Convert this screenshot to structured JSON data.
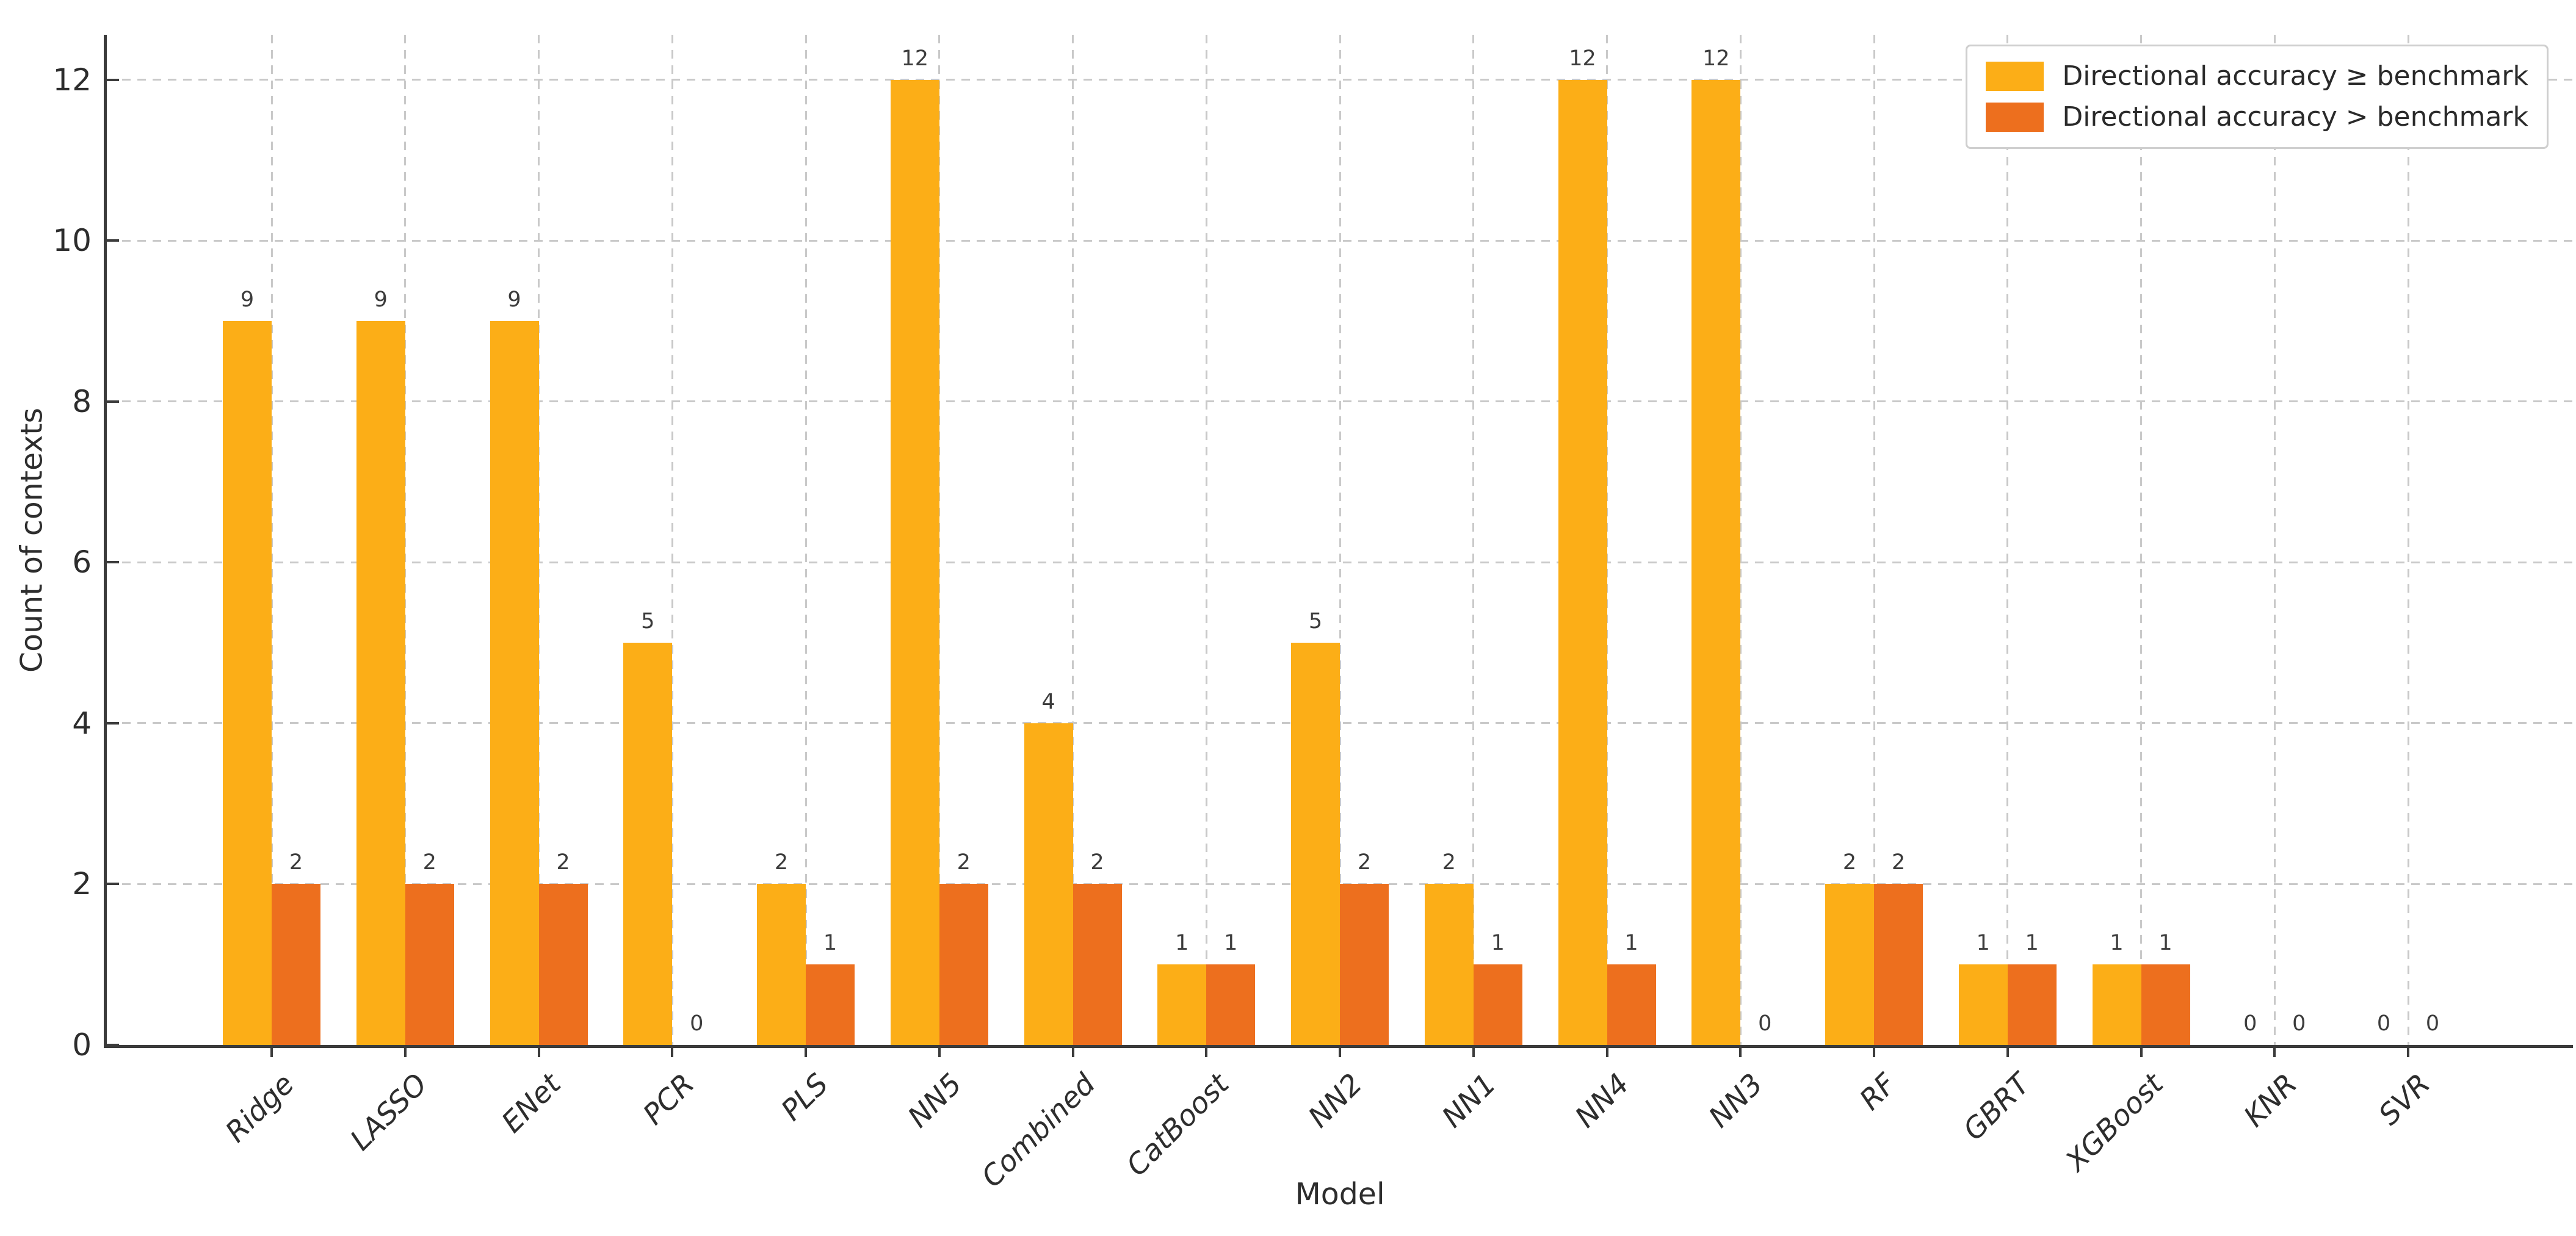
{
  "chart_data": {
    "type": "bar",
    "title": "",
    "xlabel": "Model",
    "ylabel": "Count of contexts",
    "categories": [
      "Ridge",
      "LASSO",
      "ENet",
      "PCR",
      "PLS",
      "NN5",
      "Combined",
      "CatBoost",
      "NN2",
      "NN1",
      "NN4",
      "NN3",
      "RF",
      "GBRT",
      "XGBoost",
      "KNR",
      "SVR"
    ],
    "series": [
      {
        "name": "Directional accuracy ≥ benchmark",
        "color": "#FCAE17",
        "values": [
          9,
          9,
          9,
          5,
          2,
          12,
          4,
          1,
          5,
          2,
          12,
          12,
          2,
          1,
          1,
          0,
          0
        ]
      },
      {
        "name": "Directional accuracy > benchmark",
        "color": "#ED6F1E",
        "values": [
          2,
          2,
          2,
          0,
          1,
          2,
          2,
          1,
          2,
          1,
          1,
          0,
          2,
          1,
          1,
          0,
          0
        ]
      }
    ],
    "yticks": [
      0,
      2,
      4,
      6,
      8,
      10,
      12
    ],
    "ylim": [
      0,
      12.56
    ],
    "grid": "dashed",
    "legend_position": "upper right",
    "bar_value_labels": true,
    "styles": {
      "spine_color": "#3b3b3b",
      "grid_color": "#c9c9c9",
      "text_color": "#2d2d2d",
      "value_label_color": "#3c3c3c"
    }
  }
}
